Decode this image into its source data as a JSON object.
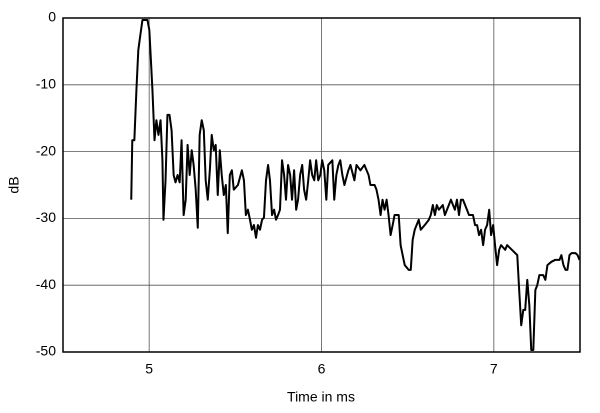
{
  "chart_data": {
    "type": "line",
    "x_label": "Time in ms",
    "y_label": "dB",
    "xlim": [
      4.5,
      7.5
    ],
    "ylim": [
      -50,
      0
    ],
    "xticks": [
      5,
      6,
      7
    ],
    "yticks": [
      0,
      -10,
      -20,
      -30,
      -40,
      -50
    ],
    "grid": true,
    "color": "#000000",
    "x": [
      4.896,
      4.902,
      4.914,
      4.926,
      4.937,
      4.949,
      4.961,
      4.99,
      5.001,
      5.013,
      5.019,
      5.031,
      5.042,
      5.054,
      5.066,
      5.077,
      5.083,
      5.095,
      5.106,
      5.118,
      5.13,
      5.142,
      5.153,
      5.165,
      5.177,
      5.188,
      5.2,
      5.212,
      5.223,
      5.235,
      5.247,
      5.258,
      5.27,
      5.282,
      5.293,
      5.305,
      5.317,
      5.328,
      5.34,
      5.352,
      5.363,
      5.375,
      5.386,
      5.398,
      5.41,
      5.421,
      5.433,
      5.445,
      5.456,
      5.468,
      5.48,
      5.491,
      5.515,
      5.538,
      5.55,
      5.561,
      5.573,
      5.585,
      5.596,
      5.608,
      5.62,
      5.631,
      5.643,
      5.655,
      5.666,
      5.678,
      5.69,
      5.701,
      5.713,
      5.725,
      5.736,
      5.748,
      5.759,
      5.771,
      5.783,
      5.794,
      5.806,
      5.818,
      5.829,
      5.841,
      5.853,
      5.864,
      5.876,
      5.888,
      5.899,
      5.911,
      5.923,
      5.934,
      5.946,
      5.958,
      5.969,
      5.981,
      5.993,
      6.004,
      6.016,
      6.028,
      6.039,
      6.063,
      6.074,
      6.086,
      6.098,
      6.109,
      6.121,
      6.133,
      6.156,
      6.168,
      6.191,
      6.203,
      6.226,
      6.249,
      6.273,
      6.284,
      6.308,
      6.319,
      6.331,
      6.343,
      6.354,
      6.366,
      6.378,
      6.389,
      6.401,
      6.413,
      6.424,
      6.448,
      6.459,
      6.471,
      6.483,
      6.506,
      6.518,
      6.529,
      6.541,
      6.564,
      6.576,
      6.599,
      6.623,
      6.634,
      6.646,
      6.658,
      6.669,
      6.681,
      6.704,
      6.716,
      6.739,
      6.751,
      6.763,
      6.774,
      6.786,
      6.798,
      6.809,
      6.821,
      6.844,
      6.856,
      6.879,
      6.891,
      6.903,
      6.914,
      6.926,
      6.938,
      6.949,
      6.961,
      6.973,
      6.984,
      6.996,
      7.007,
      7.019,
      7.031,
      7.042,
      7.066,
      7.077,
      7.136,
      7.147,
      7.159,
      7.171,
      7.182,
      7.194,
      7.206,
      7.217,
      7.229,
      7.241,
      7.252,
      7.264,
      7.287,
      7.299,
      7.311,
      7.334,
      7.357,
      7.381,
      7.392,
      7.404,
      7.416,
      7.427,
      7.439,
      7.451,
      7.474,
      7.486,
      7.497
    ],
    "values": [
      -27.2,
      -18.3,
      -18.3,
      -10.8,
      -4.8,
      -2.5,
      -0.3,
      -0.3,
      -1.8,
      -7.8,
      -10.8,
      -18.3,
      -15.3,
      -17.5,
      -15.3,
      -21.3,
      -30.2,
      -24.3,
      -14.5,
      -14.5,
      -16.8,
      -23.5,
      -24.6,
      -23.5,
      -24.6,
      -18.3,
      -29.5,
      -27.2,
      -19.0,
      -23.5,
      -19.8,
      -22.0,
      -25.7,
      -31.4,
      -17.5,
      -15.3,
      -16.8,
      -24.3,
      -27.2,
      -22.8,
      -17.5,
      -19.8,
      -19.0,
      -26.5,
      -19.8,
      -23.5,
      -26.5,
      -25.0,
      -32.2,
      -23.5,
      -22.8,
      -25.7,
      -25.0,
      -22.8,
      -24.3,
      -29.5,
      -28.7,
      -30.2,
      -31.7,
      -31.0,
      -32.9,
      -31.0,
      -31.7,
      -30.2,
      -29.9,
      -24.3,
      -22.0,
      -24.3,
      -29.5,
      -28.7,
      -30.2,
      -29.5,
      -28.7,
      -21.3,
      -23.5,
      -27.2,
      -22.0,
      -23.5,
      -27.2,
      -22.8,
      -28.7,
      -27.2,
      -23.5,
      -22.0,
      -25.7,
      -27.2,
      -24.3,
      -21.3,
      -23.5,
      -24.3,
      -21.3,
      -24.3,
      -23.5,
      -21.3,
      -22.8,
      -27.2,
      -22.0,
      -21.3,
      -27.2,
      -23.5,
      -22.0,
      -21.3,
      -23.5,
      -25.0,
      -22.8,
      -22.0,
      -24.3,
      -22.0,
      -22.8,
      -22.0,
      -23.5,
      -25.0,
      -25.0,
      -25.7,
      -27.2,
      -29.5,
      -27.2,
      -28.7,
      -27.2,
      -29.5,
      -32.5,
      -31.0,
      -29.5,
      -29.5,
      -34.0,
      -35.5,
      -37.0,
      -37.7,
      -37.7,
      -33.2,
      -31.7,
      -30.2,
      -31.7,
      -31.0,
      -30.2,
      -29.5,
      -28.0,
      -29.5,
      -28.0,
      -28.7,
      -28.0,
      -29.5,
      -28.0,
      -27.2,
      -28.0,
      -28.7,
      -27.2,
      -29.5,
      -27.2,
      -27.2,
      -28.7,
      -29.5,
      -29.5,
      -31.0,
      -31.0,
      -32.5,
      -31.7,
      -34.0,
      -31.7,
      -31.0,
      -28.7,
      -32.5,
      -31.0,
      -34.0,
      -37.0,
      -34.7,
      -34.0,
      -34.7,
      -34.0,
      -35.5,
      -40.7,
      -46.0,
      -43.7,
      -43.7,
      -39.2,
      -43.0,
      -49.7,
      -49.7,
      -40.7,
      -40.0,
      -38.5,
      -38.5,
      -39.2,
      -37.0,
      -36.5,
      -36.2,
      -36.2,
      -35.5,
      -37.0,
      -37.7,
      -37.7,
      -35.5,
      -35.2,
      -35.2,
      -35.5,
      -36.2
    ]
  }
}
